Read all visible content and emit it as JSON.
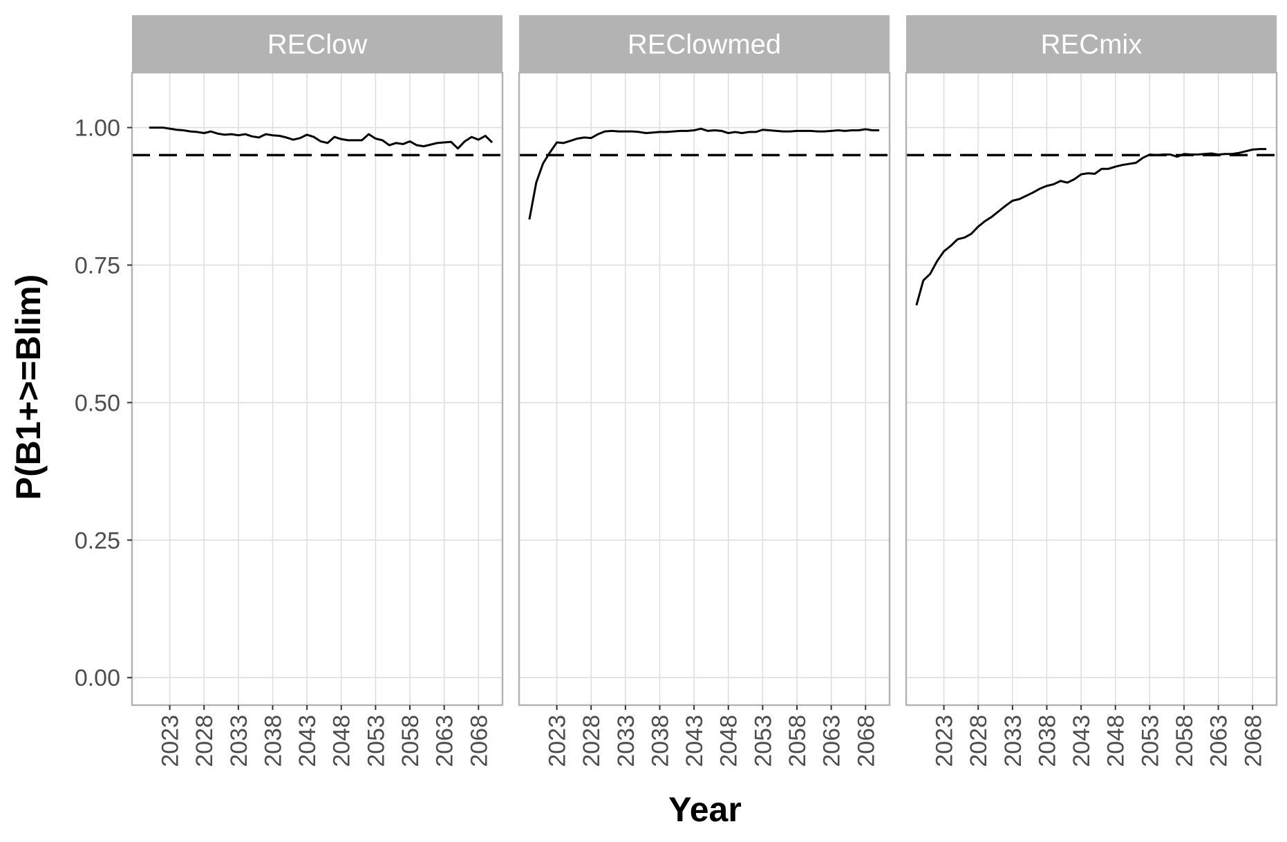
{
  "chart_data": {
    "type": "line",
    "xlabel": "Year",
    "ylabel": "P(B1+>=Blim)",
    "ylim": [
      -0.05,
      1.1
    ],
    "yticks": [
      0.0,
      0.25,
      0.5,
      0.75,
      1.0
    ],
    "ytick_labels": [
      "0.00",
      "0.25",
      "0.50",
      "0.75",
      "1.00"
    ],
    "xlim": [
      2017.5,
      2071.5
    ],
    "xticks": [
      2023,
      2028,
      2033,
      2038,
      2043,
      2048,
      2053,
      2058,
      2063,
      2068
    ],
    "xtick_labels": [
      "2023",
      "2028",
      "2033",
      "2038",
      "2043",
      "2048",
      "2053",
      "2058",
      "2063",
      "2068"
    ],
    "reference_line": {
      "y": 0.95,
      "style": "dashed"
    },
    "grid": true,
    "legend": "none",
    "x": [
      2019,
      2020,
      2021,
      2022,
      2023,
      2024,
      2025,
      2026,
      2027,
      2028,
      2029,
      2030,
      2031,
      2032,
      2033,
      2034,
      2035,
      2036,
      2037,
      2038,
      2039,
      2040,
      2041,
      2042,
      2043,
      2044,
      2045,
      2046,
      2047,
      2048,
      2049,
      2050,
      2051,
      2052,
      2053,
      2054,
      2055,
      2056,
      2057,
      2058,
      2059,
      2060,
      2061,
      2062,
      2063,
      2064,
      2065,
      2066,
      2067,
      2068,
      2069,
      2070
    ],
    "facets": [
      {
        "label": "REClow",
        "x_start": 2020,
        "values": [
          1.0,
          1.0,
          1.0,
          0.998,
          0.996,
          0.995,
          0.993,
          0.992,
          0.99,
          0.993,
          0.989,
          0.987,
          0.988,
          0.986,
          0.988,
          0.984,
          0.982,
          0.988,
          0.986,
          0.985,
          0.982,
          0.978,
          0.981,
          0.987,
          0.983,
          0.975,
          0.972,
          0.983,
          0.979,
          0.977,
          0.977,
          0.977,
          0.988,
          0.98,
          0.977,
          0.968,
          0.972,
          0.97,
          0.975,
          0.968,
          0.966,
          0.969,
          0.972,
          0.973,
          0.974,
          0.962,
          0.975,
          0.983,
          0.978,
          0.985,
          0.973
        ]
      },
      {
        "label": "REClowmed",
        "x_start": 2019,
        "values": [
          0.833,
          0.9,
          0.935,
          0.955,
          0.973,
          0.972,
          0.976,
          0.98,
          0.982,
          0.981,
          0.988,
          0.993,
          0.994,
          0.993,
          0.993,
          0.993,
          0.992,
          0.99,
          0.991,
          0.992,
          0.992,
          0.993,
          0.994,
          0.994,
          0.995,
          0.998,
          0.994,
          0.995,
          0.994,
          0.99,
          0.992,
          0.99,
          0.992,
          0.992,
          0.996,
          0.995,
          0.994,
          0.993,
          0.993,
          0.994,
          0.994,
          0.994,
          0.993,
          0.993,
          0.994,
          0.995,
          0.994,
          0.995,
          0.995,
          0.997,
          0.995,
          0.995
        ]
      },
      {
        "label": "RECmix",
        "x_start": 2019,
        "values": [
          0.677,
          0.722,
          0.734,
          0.757,
          0.775,
          0.785,
          0.797,
          0.8,
          0.807,
          0.82,
          0.83,
          0.838,
          0.848,
          0.858,
          0.867,
          0.87,
          0.876,
          0.882,
          0.889,
          0.894,
          0.897,
          0.903,
          0.9,
          0.906,
          0.915,
          0.917,
          0.916,
          0.925,
          0.925,
          0.929,
          0.932,
          0.934,
          0.936,
          0.945,
          0.951,
          0.95,
          0.951,
          0.951,
          0.947,
          0.952,
          0.951,
          0.951,
          0.952,
          0.953,
          0.951,
          0.952,
          0.952,
          0.954,
          0.957,
          0.96,
          0.961,
          0.961
        ]
      }
    ]
  }
}
